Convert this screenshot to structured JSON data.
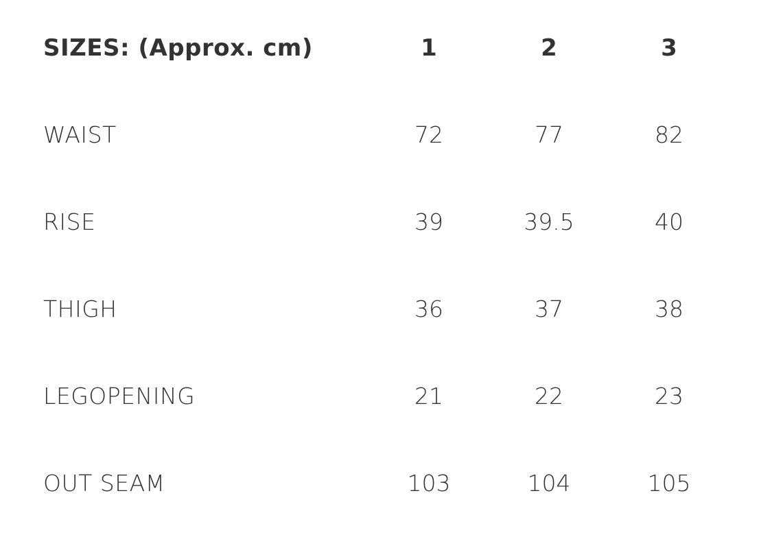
{
  "table": {
    "header": {
      "title": "SIZES: (Approx. cm)",
      "sizes": [
        "1",
        "2",
        "3"
      ]
    },
    "rows": [
      {
        "label": "WAIST",
        "values": [
          "72",
          "77",
          "82"
        ]
      },
      {
        "label": "RISE",
        "values": [
          "39",
          "39.5",
          "40"
        ]
      },
      {
        "label": "THIGH",
        "values": [
          "36",
          "37",
          "38"
        ]
      },
      {
        "label": "LEGOPENING",
        "values": [
          "21",
          "22",
          "23"
        ]
      },
      {
        "label": "OUT SEAM",
        "values": [
          "103",
          "104",
          "105"
        ]
      }
    ]
  },
  "colors": {
    "text": "#333333",
    "background": "#ffffff"
  }
}
